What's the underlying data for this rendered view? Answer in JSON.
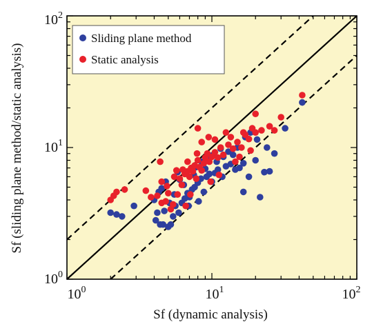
{
  "chart_data": {
    "type": "scatter",
    "x_scale": "log",
    "y_scale": "log",
    "xlim": [
      1,
      100
    ],
    "ylim": [
      1,
      100
    ],
    "xlabel": "Sf (dynamic analysis)",
    "ylabel": "Sf (sliding plane method/static analysis)",
    "x_tick_labels": [
      {
        "value": 1,
        "base": "10",
        "exp": "0"
      },
      {
        "value": 10,
        "base": "10",
        "exp": "1"
      },
      {
        "value": 100,
        "base": "10",
        "exp": "2"
      }
    ],
    "y_tick_labels": [
      {
        "value": 1,
        "base": "10",
        "exp": "0"
      },
      {
        "value": 10,
        "base": "10",
        "exp": "1"
      },
      {
        "value": 100,
        "base": "10",
        "exp": "2"
      }
    ],
    "grid": false,
    "plot_background": "#fbf5c9",
    "legend_position": "top-left",
    "reference_lines": [
      {
        "style": "solid",
        "factor": 1
      },
      {
        "style": "dashed",
        "factor": 2
      },
      {
        "style": "dashed",
        "factor": 0.5
      }
    ],
    "series": [
      {
        "name": "Sliding plane method",
        "color": "#2e3f9e",
        "points": [
          [
            2.0,
            3.2
          ],
          [
            2.2,
            3.1
          ],
          [
            2.4,
            3.0
          ],
          [
            2.9,
            3.6
          ],
          [
            4.0,
            4.0
          ],
          [
            4.3,
            4.6
          ],
          [
            4.1,
            2.8
          ],
          [
            4.4,
            2.6
          ],
          [
            4.6,
            2.6
          ],
          [
            4.2,
            3.2
          ],
          [
            4.7,
            3.3
          ],
          [
            5.0,
            2.5
          ],
          [
            5.2,
            2.6
          ],
          [
            5.4,
            3.0
          ],
          [
            5.6,
            3.6
          ],
          [
            5.9,
            3.2
          ],
          [
            6.2,
            3.8
          ],
          [
            6.5,
            4.1
          ],
          [
            6.8,
            4.5
          ],
          [
            7.0,
            4.2
          ],
          [
            7.3,
            4.8
          ],
          [
            7.6,
            5.0
          ],
          [
            8.0,
            5.4
          ],
          [
            8.4,
            5.8
          ],
          [
            8.8,
            4.6
          ],
          [
            9.2,
            6.0
          ],
          [
            9.6,
            6.3
          ],
          [
            10.0,
            5.5
          ],
          [
            10.5,
            6.4
          ],
          [
            11.0,
            6.8
          ],
          [
            11.8,
            6.0
          ],
          [
            12.5,
            7.2
          ],
          [
            13.5,
            7.5
          ],
          [
            14.5,
            6.8
          ],
          [
            15.5,
            7.0
          ],
          [
            16.5,
            7.6
          ],
          [
            16.5,
            4.6
          ],
          [
            18.0,
            6.0
          ],
          [
            20.0,
            8.0
          ],
          [
            21.5,
            4.2
          ],
          [
            23.0,
            6.5
          ],
          [
            25.0,
            6.6
          ],
          [
            27.0,
            9.0
          ],
          [
            32.0,
            14.0
          ],
          [
            42.0,
            22.0
          ],
          [
            4.8,
            5.5
          ],
          [
            5.8,
            6.5
          ],
          [
            6.4,
            5.2
          ],
          [
            7.5,
            6.2
          ],
          [
            8.5,
            7.8
          ],
          [
            9.5,
            8.2
          ],
          [
            10.8,
            7.8
          ],
          [
            12.0,
            8.5
          ],
          [
            13.0,
            9.3
          ],
          [
            15.0,
            10.0
          ],
          [
            17.0,
            12.0
          ],
          [
            18.5,
            13.0
          ],
          [
            6.9,
            3.6
          ],
          [
            5.5,
            4.4
          ],
          [
            9.0,
            6.9
          ],
          [
            11.5,
            9.8
          ],
          [
            14.0,
            8.8
          ],
          [
            20.5,
            11.5
          ],
          [
            24.0,
            10.0
          ],
          [
            7.8,
            7.1
          ],
          [
            6.0,
            5.7
          ],
          [
            5.1,
            3.8
          ],
          [
            4.5,
            4.9
          ],
          [
            8.1,
            3.9
          ],
          [
            10.2,
            8.8
          ]
        ]
      },
      {
        "name": "Static analysis",
        "color": "#e8212b",
        "points": [
          [
            2.0,
            4.0
          ],
          [
            2.1,
            4.3
          ],
          [
            2.2,
            4.6
          ],
          [
            2.5,
            4.8
          ],
          [
            3.5,
            4.7
          ],
          [
            4.2,
            4.3
          ],
          [
            4.5,
            3.8
          ],
          [
            4.5,
            5.5
          ],
          [
            4.8,
            3.9
          ],
          [
            5.0,
            4.5
          ],
          [
            5.2,
            3.4
          ],
          [
            5.4,
            3.7
          ],
          [
            5.5,
            6.0
          ],
          [
            5.8,
            4.4
          ],
          [
            6.0,
            5.8
          ],
          [
            6.2,
            5.2
          ],
          [
            6.5,
            6.3
          ],
          [
            6.8,
            6.6
          ],
          [
            7.0,
            6.0
          ],
          [
            7.2,
            7.0
          ],
          [
            7.4,
            6.6
          ],
          [
            7.6,
            7.3
          ],
          [
            7.8,
            5.8
          ],
          [
            8.0,
            8.0
          ],
          [
            8.2,
            7.1
          ],
          [
            8.5,
            6.7
          ],
          [
            8.8,
            7.6
          ],
          [
            9.0,
            8.4
          ],
          [
            9.3,
            9.0
          ],
          [
            9.6,
            7.8
          ],
          [
            10.0,
            8.5
          ],
          [
            10.5,
            9.2
          ],
          [
            11.0,
            8.4
          ],
          [
            11.5,
            10.0
          ],
          [
            12.0,
            8.8
          ],
          [
            13.0,
            10.5
          ],
          [
            14.0,
            9.8
          ],
          [
            15.0,
            11.0
          ],
          [
            15.5,
            8.5
          ],
          [
            16.0,
            10.0
          ],
          [
            17.0,
            12.5
          ],
          [
            18.0,
            11.6
          ],
          [
            19.0,
            14.0
          ],
          [
            20.0,
            13.0
          ],
          [
            22.0,
            13.5
          ],
          [
            25.0,
            14.5
          ],
          [
            30.0,
            17.0
          ],
          [
            42.0,
            25.0
          ],
          [
            20.0,
            18.0
          ],
          [
            8.5,
            11.0
          ],
          [
            8.0,
            14.0
          ],
          [
            9.5,
            12.0
          ],
          [
            13.5,
            12.0
          ],
          [
            4.4,
            7.8
          ],
          [
            6.8,
            7.8
          ],
          [
            10.5,
            11.5
          ],
          [
            12.5,
            13.0
          ],
          [
            16.5,
            13.0
          ],
          [
            5.7,
            6.7
          ],
          [
            6.6,
            3.6
          ],
          [
            7.1,
            4.4
          ],
          [
            4.9,
            5.1
          ],
          [
            3.8,
            4.2
          ],
          [
            9.8,
            5.5
          ],
          [
            11.2,
            6.2
          ],
          [
            27.0,
            13.5
          ],
          [
            18.5,
            9.5
          ],
          [
            14.5,
            7.8
          ],
          [
            6.3,
            6.8
          ],
          [
            7.9,
            9.0
          ]
        ]
      }
    ]
  }
}
